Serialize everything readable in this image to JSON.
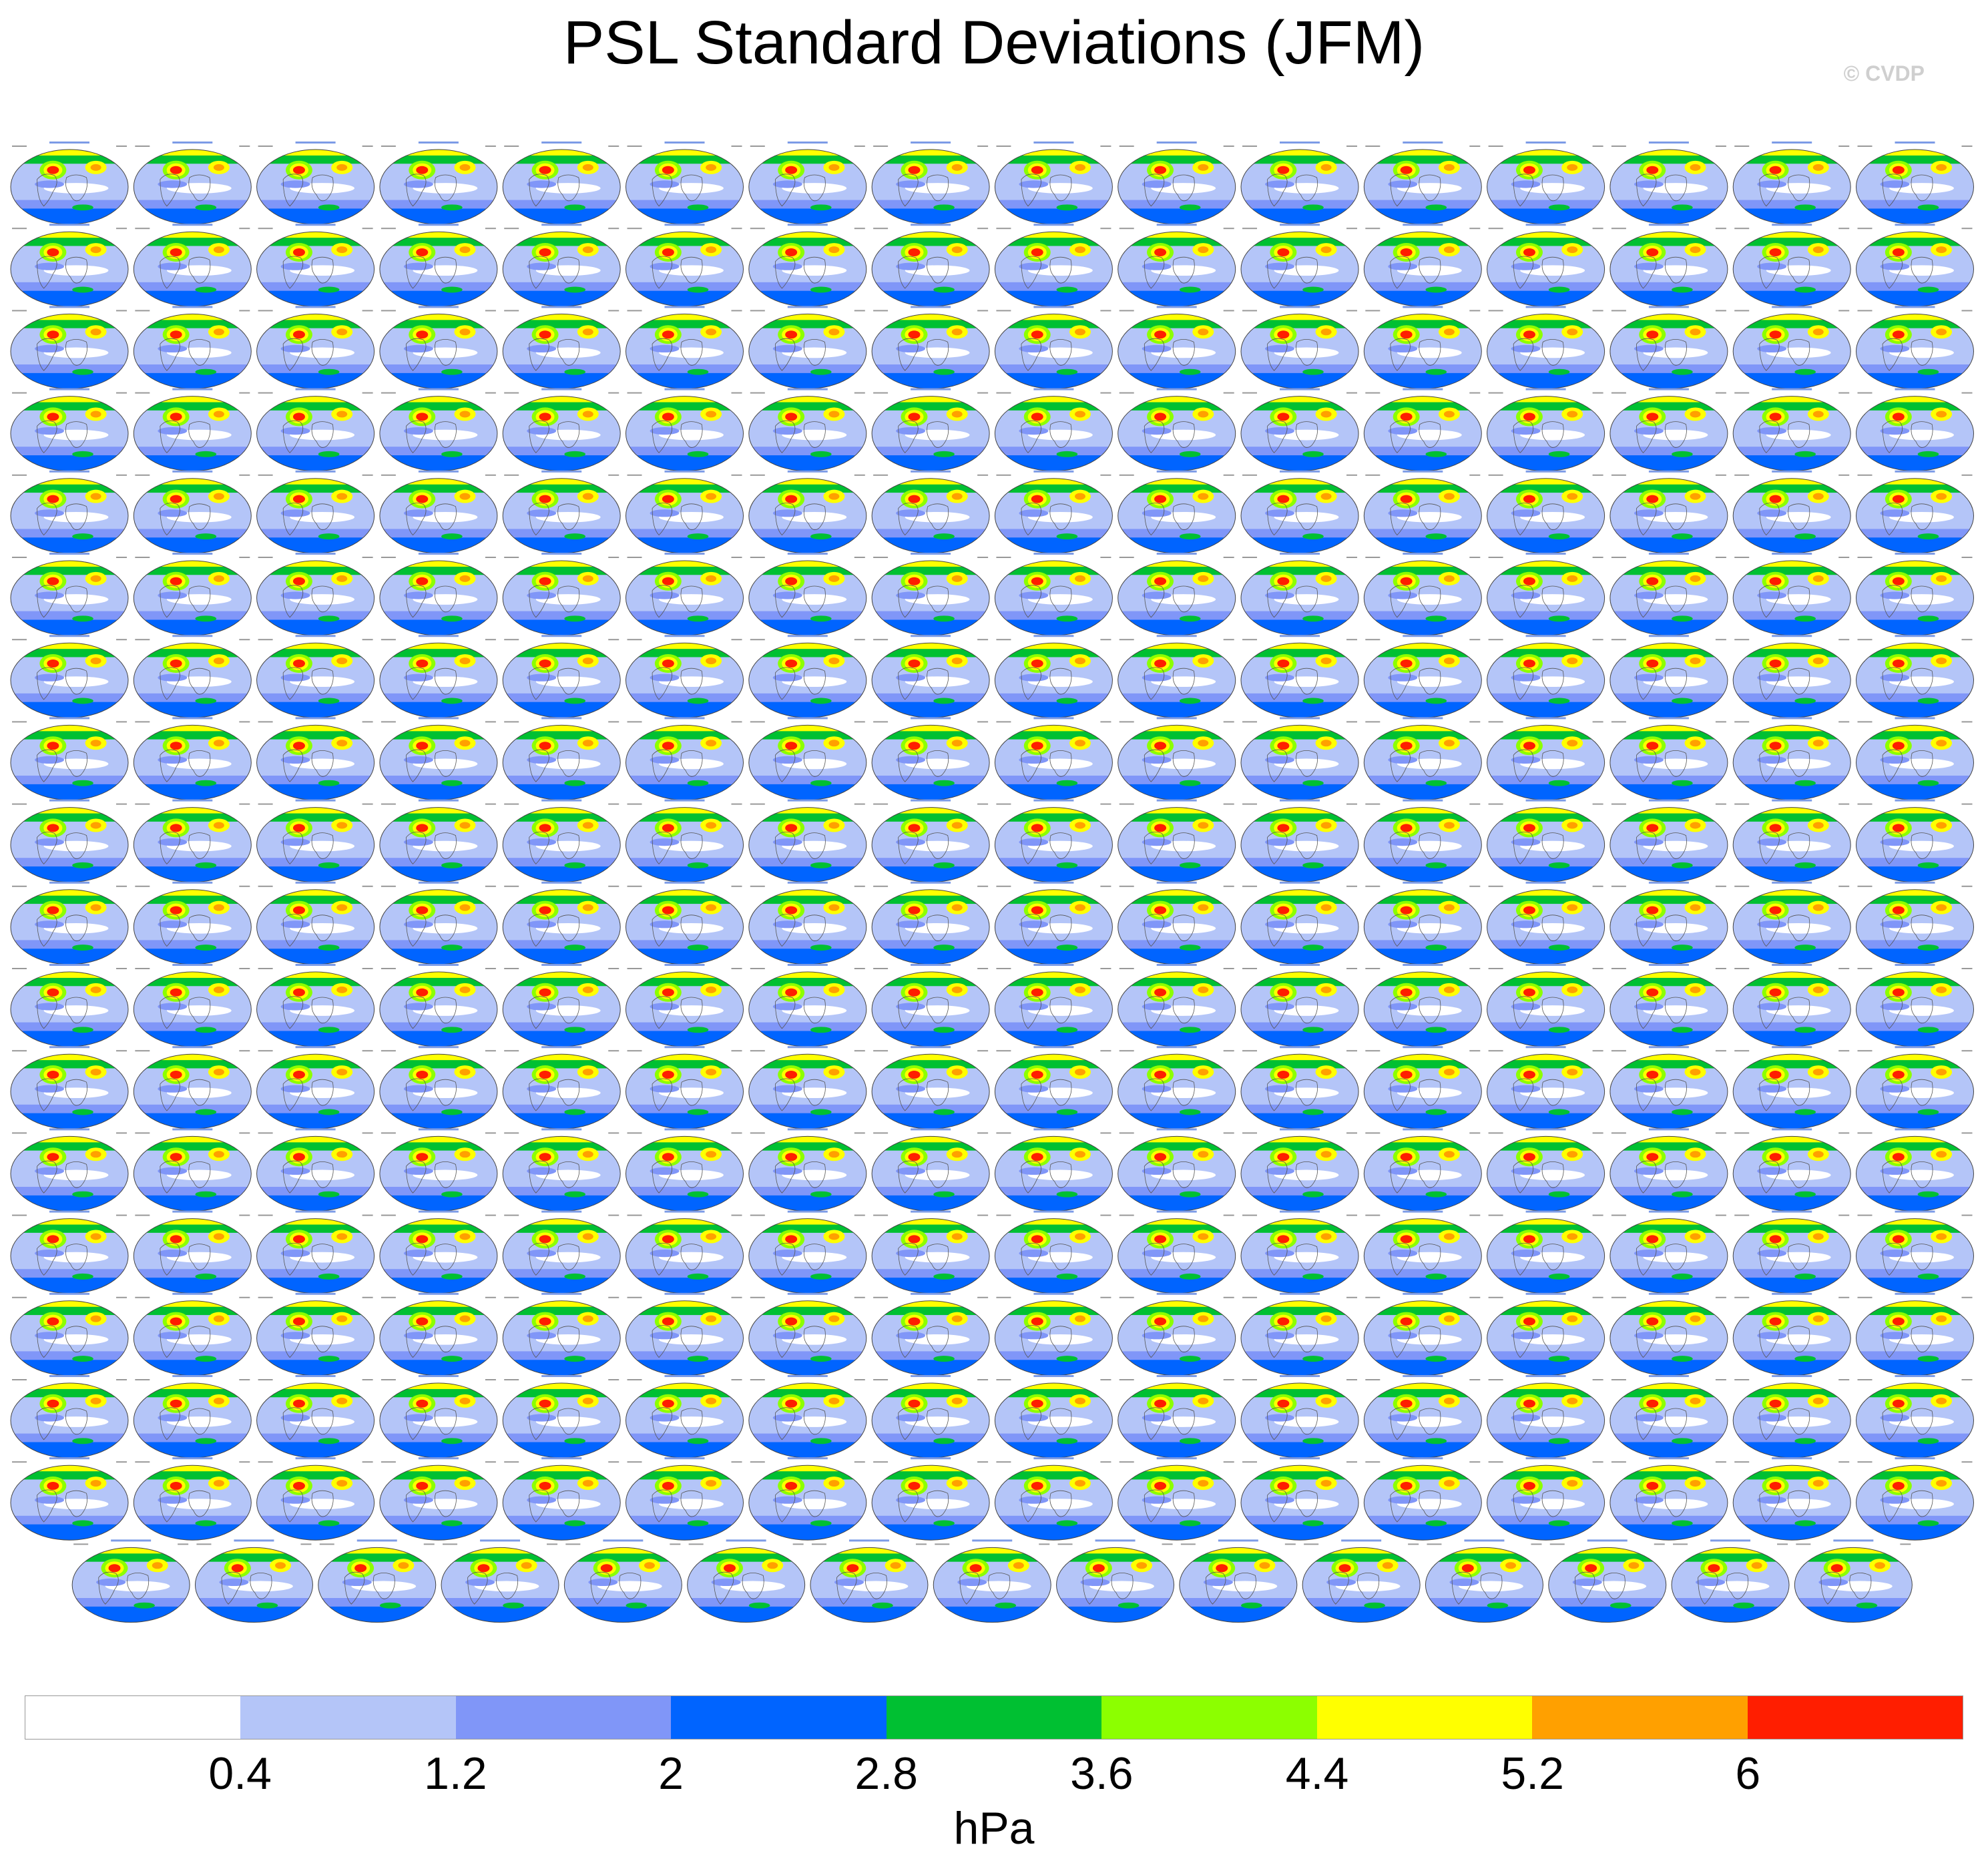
{
  "title": "PSL Standard Deviations (JFM)",
  "copyright": "© CVDP",
  "colorbar": {
    "unit": "hPa",
    "colors": [
      "#ffffff",
      "#b4c5f8",
      "#8096f8",
      "#0064ff",
      "#00c032",
      "#8cff00",
      "#ffff00",
      "#ffa000",
      "#ff1e00"
    ],
    "ticks": [
      "0.4",
      "1.2",
      "2",
      "2.8",
      "3.6",
      "4.4",
      "5.2",
      "6"
    ]
  },
  "chart_data": {
    "type": "heatmap",
    "title": "PSL Standard Deviations (JFM)",
    "description_level_units": "hPa",
    "levels": [
      0.4,
      1.2,
      2,
      2.8,
      3.6,
      4.4,
      5.2,
      6
    ],
    "panel_rows": 18,
    "panel_cols": 16,
    "last_row_panels": 15,
    "panel_count": 287
  }
}
